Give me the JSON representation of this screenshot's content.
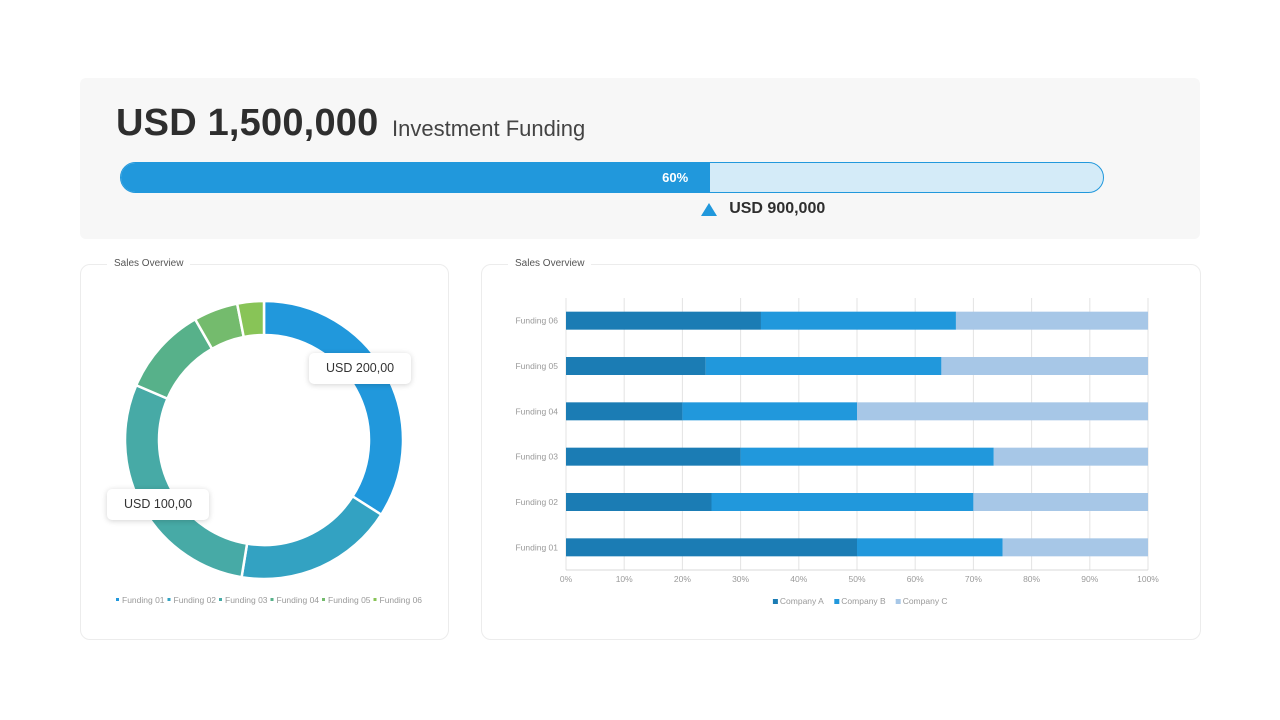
{
  "header": {
    "amount": "USD 1,500,000",
    "label": "Investment Funding",
    "progress_value": 0.6,
    "progress_label": "60%",
    "marker_label": "USD 900,000"
  },
  "colors": {
    "primary": "#2198dc",
    "track": "#d4ebf8",
    "card_bg": "#f7f7f7"
  },
  "donut_panel": {
    "title": "Sales Overview",
    "callouts": [
      "USD 200,00",
      "USD 100,00"
    ]
  },
  "bar_panel": {
    "title": "Sales Overview"
  },
  "chart_data": [
    {
      "type": "pie",
      "variant": "donut",
      "title": "Sales Overview",
      "categories": [
        "Funding 01",
        "Funding 02",
        "Funding 03",
        "Funding 04",
        "Funding 05",
        "Funding 06"
      ],
      "values": [
        33,
        18,
        28,
        10,
        5,
        3
      ],
      "colors": [
        "#2198dc",
        "#33a2c2",
        "#47aaa6",
        "#57b18a",
        "#74bb6d",
        "#88c457"
      ],
      "legend": "bottom"
    },
    {
      "type": "bar",
      "orientation": "horizontal",
      "stacked": "percent",
      "title": "Sales Overview",
      "categories": [
        "Funding 01",
        "Funding 02",
        "Funding 03",
        "Funding 04",
        "Funding 05",
        "Funding 06"
      ],
      "series": [
        {
          "name": "Company A",
          "values": [
            50,
            25,
            30,
            20,
            24,
            33.5
          ],
          "color": "#1b7cb4"
        },
        {
          "name": "Company B",
          "values": [
            25,
            45,
            43.5,
            30,
            40.5,
            33.5
          ],
          "color": "#2198dc"
        },
        {
          "name": "Company C",
          "values": [
            25,
            30,
            26.5,
            50,
            35.5,
            33
          ],
          "color": "#a7c7e7"
        }
      ],
      "xticks": [
        "0%",
        "10%",
        "20%",
        "30%",
        "40%",
        "50%",
        "60%",
        "70%",
        "80%",
        "90%",
        "100%"
      ],
      "xlim": [
        0,
        100
      ],
      "grid": true,
      "legend": "bottom"
    }
  ]
}
